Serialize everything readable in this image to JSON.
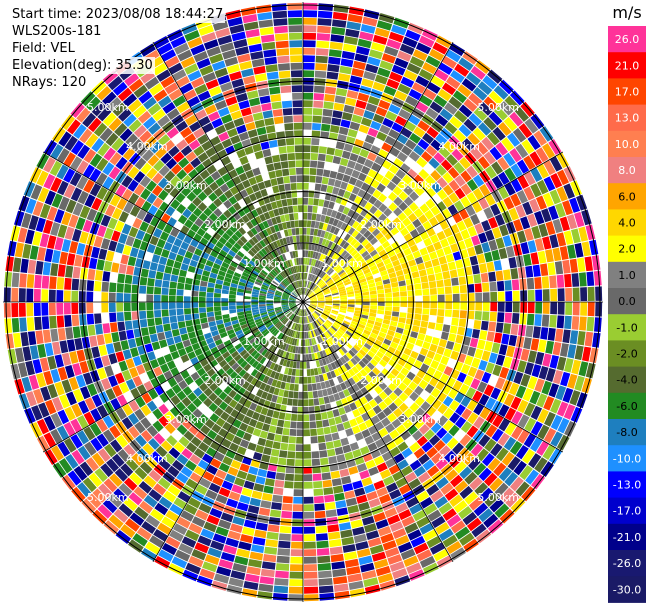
{
  "header": {
    "start_time": "Start time: 2023/08/08 18:44:27",
    "instrument": "WLS200s-181",
    "field": "Field: VEL",
    "elevation": "Elevation(deg): 35.30",
    "nrays": "NRays: 120"
  },
  "chart_data": {
    "type": "heatmap",
    "projection": "polar PPI scan",
    "field": "VEL",
    "units": "m/s",
    "nrays": 120,
    "range_rings_km": [
      1.0,
      2.0,
      3.0,
      4.0,
      5.0
    ],
    "ring_labels": [
      "1.00km",
      "2.00km",
      "3.00km",
      "4.00km",
      "5.00km"
    ],
    "colorbar": {
      "ticks": [
        "26.0",
        "21.0",
        "17.0",
        "13.0",
        "10.0",
        "8.0",
        "6.0",
        "4.0",
        "2.0",
        "1.0",
        "0.0",
        "-1.0",
        "-2.0",
        "-4.0",
        "-6.0",
        "-8.0",
        "-10.0",
        "-13.0",
        "-17.0",
        "-21.0",
        "-26.0",
        "-30.0"
      ],
      "colors": [
        "#ff3399",
        "#ff0000",
        "#ff4500",
        "#ff6b4a",
        "#ff7f50",
        "#f08080",
        "#ffa500",
        "#ffd700",
        "#ffff00",
        "#808080",
        "#696969",
        "#9acd32",
        "#6b8e23",
        "#556b2f",
        "#228b22",
        "#1e7fbf",
        "#1e90ff",
        "#0000ff",
        "#0000cd",
        "#00008b",
        "#191970",
        "#1a1a66"
      ]
    },
    "pattern": "near-range (<~2.5 km): positive velocities (yellow/orange, 0–6 m/s) toward east/south-east, negative velocities (green, -1 to -6 m/s) toward west/north-west, grey near zero; far range: noisy multicolored values"
  }
}
